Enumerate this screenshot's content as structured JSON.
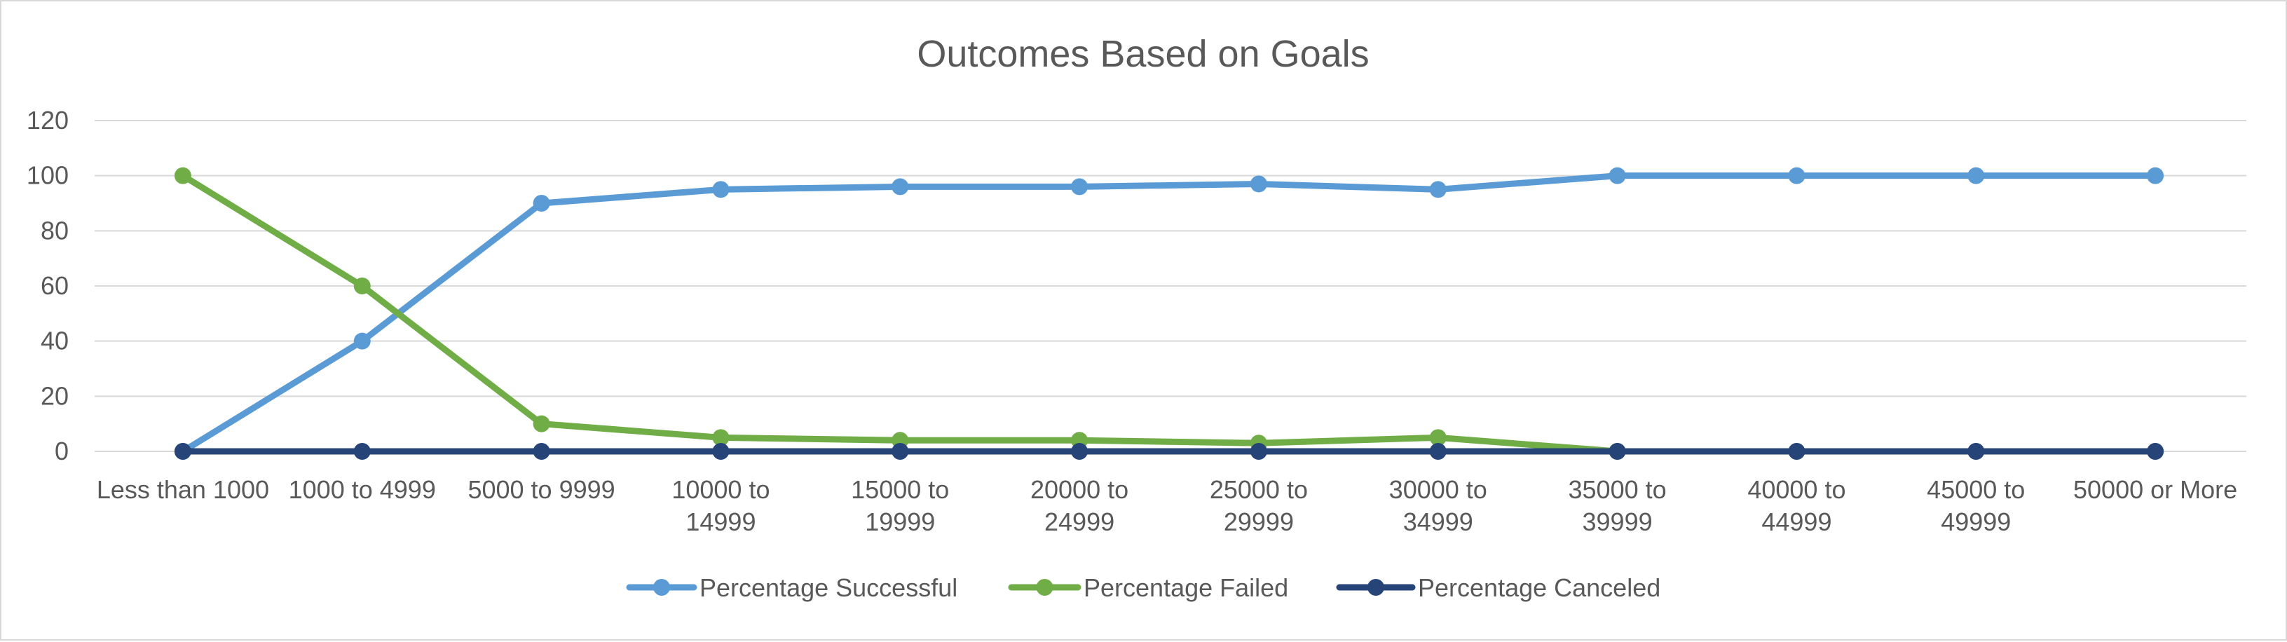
{
  "chart_data": {
    "type": "line",
    "title": "Outcomes Based on Goals",
    "categories": [
      [
        "Less than 1000"
      ],
      [
        "1000 to 4999"
      ],
      [
        "5000 to 9999"
      ],
      [
        "10000 to",
        "14999"
      ],
      [
        "15000 to",
        "19999"
      ],
      [
        "20000 to",
        "24999"
      ],
      [
        "25000 to",
        "29999"
      ],
      [
        "30000 to",
        "34999"
      ],
      [
        "35000 to",
        "39999"
      ],
      [
        "40000 to",
        "44999"
      ],
      [
        "45000 to",
        "49999"
      ],
      [
        "50000 or More"
      ]
    ],
    "series": [
      {
        "name": "Percentage Successful",
        "color": "#5b9bd5",
        "values": [
          0,
          40,
          90,
          95,
          96,
          96,
          97,
          95,
          100,
          100,
          100,
          100
        ]
      },
      {
        "name": "Percentage Failed",
        "color": "#70ad47",
        "values": [
          100,
          60,
          10,
          5,
          4,
          4,
          3,
          5,
          0,
          0,
          0,
          0
        ]
      },
      {
        "name": "Percentage Canceled",
        "color": "#264478",
        "values": [
          0,
          0,
          0,
          0,
          0,
          0,
          0,
          0,
          0,
          0,
          0,
          0
        ]
      }
    ],
    "ylim": [
      0,
      120
    ],
    "yticks": [
      0,
      20,
      40,
      60,
      80,
      100,
      120
    ],
    "grid": true,
    "legend_position": "bottom"
  }
}
